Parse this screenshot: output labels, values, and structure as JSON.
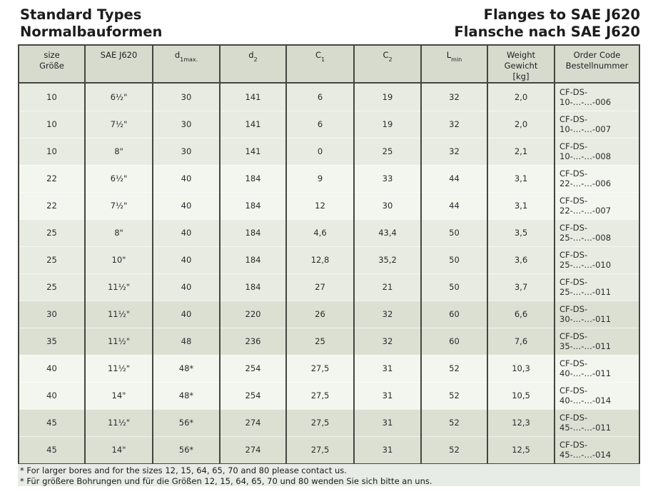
{
  "page": {
    "title_left_line1": "Standard Types",
    "title_left_line2": "Normalbauformen",
    "title_right_line1": "Flanges to SAE J620",
    "title_right_line2": "Flansche nach SAE J620"
  },
  "colors": {
    "header_bg": "#d7dbce",
    "row_light": "#f3f5ef",
    "row_mid": "#e8ebe2",
    "row_dark": "#dce0d3",
    "strip_bg": "#e8ece6",
    "border": "#45453f",
    "text": "#2b2b2b",
    "title": "#1c1c1c"
  },
  "table": {
    "columns": [
      {
        "id": "size",
        "line1": "size",
        "line2": "Größe"
      },
      {
        "id": "sae-j620",
        "line1": "SAE J620"
      },
      {
        "id": "d1max",
        "base": "d",
        "sub": "1max."
      },
      {
        "id": "d2",
        "base": "d",
        "sub": "2"
      },
      {
        "id": "c1",
        "base": "C",
        "sub": "1"
      },
      {
        "id": "c2",
        "base": "C",
        "sub": "2"
      },
      {
        "id": "lmin",
        "base": "L",
        "sub": "min"
      },
      {
        "id": "weight",
        "line1": "Weight",
        "line2": "Gewicht",
        "line3": "[kg]"
      },
      {
        "id": "order-code",
        "line1": "Order Code",
        "line2": "Bestellnummer"
      }
    ],
    "rows": [
      {
        "shade": "mid",
        "cells": [
          "10",
          "6½\"",
          "30",
          "141",
          "6",
          "19",
          "32",
          "2,0",
          "CF-DS-10-…-…-006"
        ]
      },
      {
        "shade": "mid",
        "cells": [
          "10",
          "7½\"",
          "30",
          "141",
          "6",
          "19",
          "32",
          "2,0",
          "CF-DS-10-…-…-007"
        ]
      },
      {
        "shade": "mid",
        "cells": [
          "10",
          "8\"",
          "30",
          "141",
          "0",
          "25",
          "32",
          "2,1",
          "CF-DS-10-…-…-008"
        ]
      },
      {
        "shade": "light",
        "cells": [
          "22",
          "6½\"",
          "40",
          "184",
          "9",
          "33",
          "44",
          "3,1",
          "CF-DS-22-…-…-006"
        ]
      },
      {
        "shade": "light",
        "cells": [
          "22",
          "7½\"",
          "40",
          "184",
          "12",
          "30",
          "44",
          "3,1",
          "CF-DS-22-…-…-007"
        ]
      },
      {
        "shade": "mid",
        "cells": [
          "25",
          "8\"",
          "40",
          "184",
          "4,6",
          "43,4",
          "50",
          "3,5",
          "CF-DS-25-…-…-008"
        ]
      },
      {
        "shade": "mid",
        "cells": [
          "25",
          "10\"",
          "40",
          "184",
          "12,8",
          "35,2",
          "50",
          "3,6",
          "CF-DS-25-…-…-010"
        ]
      },
      {
        "shade": "mid",
        "cells": [
          "25",
          "11½\"",
          "40",
          "184",
          "27",
          "21",
          "50",
          "3,7",
          "CF-DS-25-…-…-011"
        ]
      },
      {
        "shade": "dark",
        "cells": [
          "30",
          "11½\"",
          "40",
          "220",
          "26",
          "32",
          "60",
          "6,6",
          "CF-DS-30-…-…-011"
        ]
      },
      {
        "shade": "dark",
        "cells": [
          "35",
          "11½\"",
          "48",
          "236",
          "25",
          "32",
          "60",
          "7,6",
          "CF-DS-35-…-…-011"
        ]
      },
      {
        "shade": "light",
        "cells": [
          "40",
          "11½\"",
          "48*",
          "254",
          "27,5",
          "31",
          "52",
          "10,3",
          "CF-DS-40-…-…-011"
        ]
      },
      {
        "shade": "light",
        "cells": [
          "40",
          "14\"",
          "48*",
          "254",
          "27,5",
          "31",
          "52",
          "10,5",
          "CF-DS-40-…-…-014"
        ]
      },
      {
        "shade": "dark",
        "cells": [
          "45",
          "11½\"",
          "56*",
          "274",
          "27,5",
          "31",
          "52",
          "12,3",
          "CF-DS-45-…-…-011"
        ]
      },
      {
        "shade": "dark",
        "cells": [
          "45",
          "14\"",
          "56*",
          "274",
          "27,5",
          "31",
          "52",
          "12,5",
          "CF-DS-45-…-…-014"
        ]
      }
    ]
  },
  "footnotes": [
    "* For larger bores and for the sizes 12, 15, 64, 65, 70 and 80 please contact us.",
    "* Für größere Bohrungen und für die Größen 12, 15, 64, 65, 70 und 80 wenden Sie sich bitte an uns."
  ]
}
